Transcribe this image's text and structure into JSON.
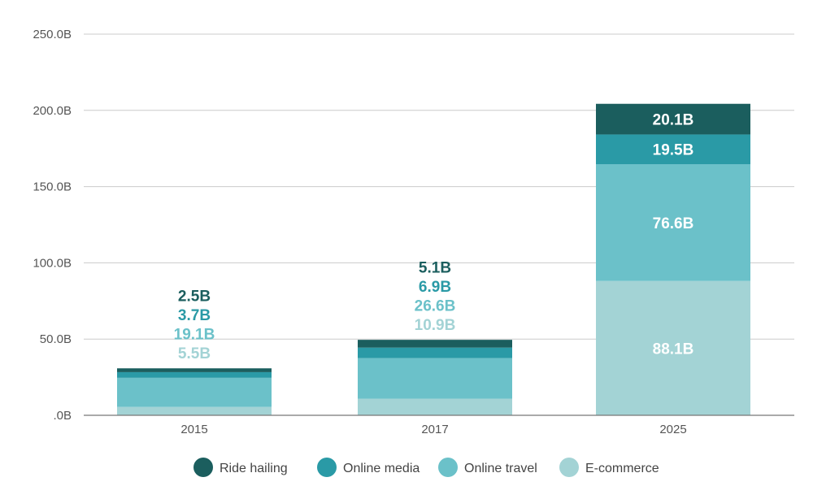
{
  "chart_data": {
    "type": "bar",
    "stacked": true,
    "categories": [
      "2015",
      "2017",
      "2025"
    ],
    "series": [
      {
        "name": "E-commerce",
        "values": [
          5.5,
          10.9,
          88.1
        ],
        "labels": [
          "5.5B",
          "10.9B",
          "88.1B"
        ],
        "color": "#a3d3d5"
      },
      {
        "name": "Online travel",
        "values": [
          19.1,
          26.6,
          76.6
        ],
        "labels": [
          "19.1B",
          "26.6B",
          "76.6B"
        ],
        "color": "#6bc1c9"
      },
      {
        "name": "Online media",
        "values": [
          3.7,
          6.9,
          19.5
        ],
        "labels": [
          "3.7B",
          "6.9B",
          "19.5B"
        ],
        "color": "#2a9aa6"
      },
      {
        "name": "Ride hailing",
        "values": [
          2.5,
          5.1,
          20.1
        ],
        "labels": [
          "2.5B",
          "5.1B",
          "20.1B"
        ],
        "color": "#1b5e5e"
      }
    ],
    "inside_label_color": "#ffffff",
    "y_ticks": [
      0,
      50,
      100,
      150,
      200,
      250
    ],
    "y_tick_labels": [
      ".0B",
      "50.0B",
      "100.0B",
      "150.0B",
      "200.0B",
      "250.0B"
    ],
    "ylim": [
      0,
      250
    ],
    "grid": true,
    "legend": "bottom",
    "legend_order": [
      "Ride hailing",
      "Online media",
      "Online travel",
      "E-commerce"
    ],
    "title": "",
    "xlabel": "",
    "ylabel": ""
  }
}
